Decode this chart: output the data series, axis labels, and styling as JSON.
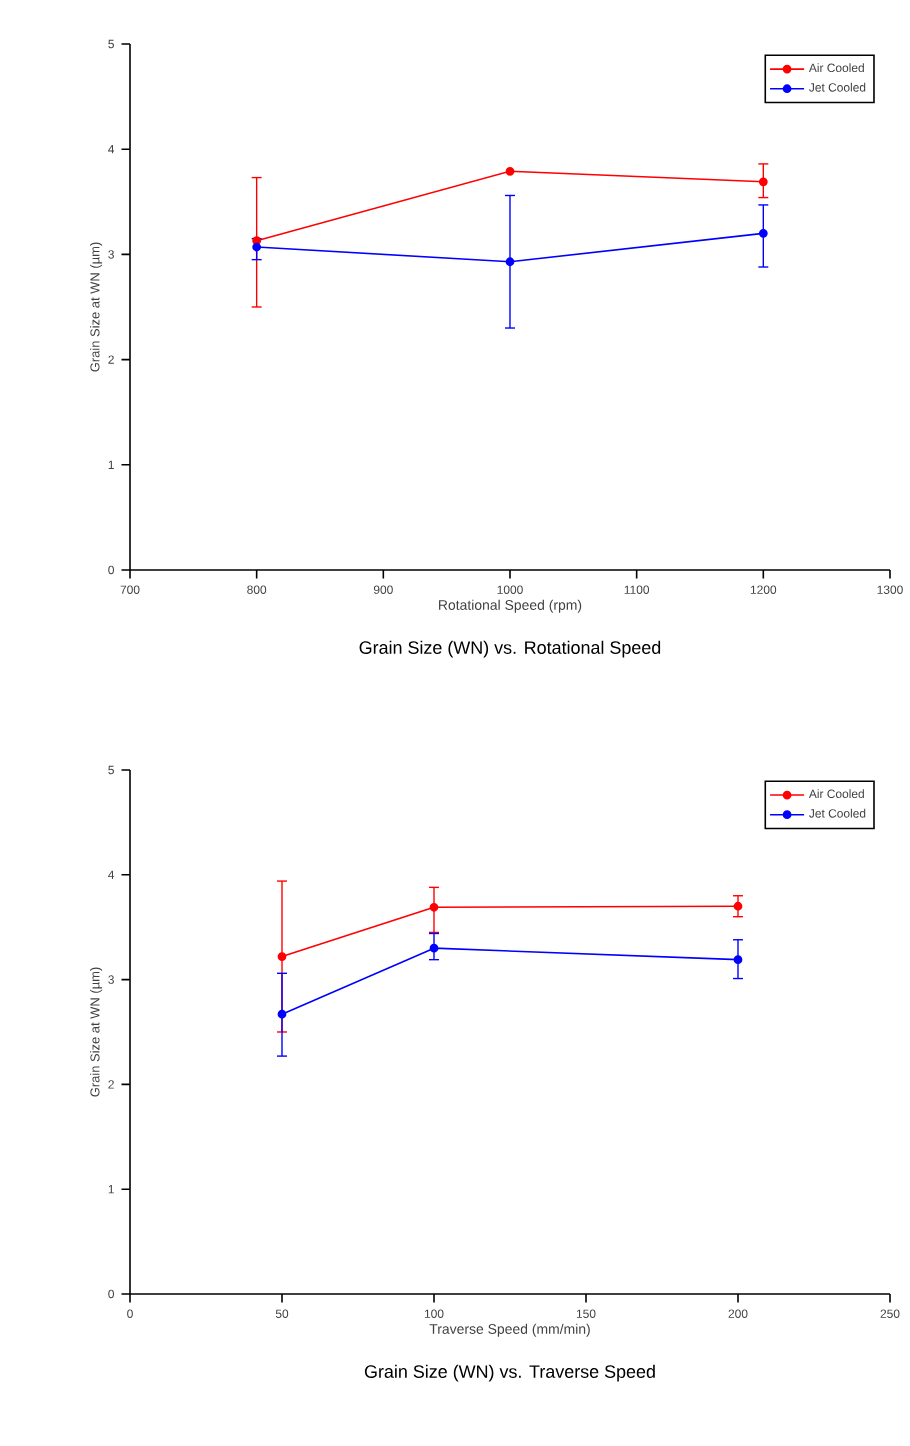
{
  "chart_data": [
    {
      "type": "line",
      "title": "Grain Size (WN) vs. Rotational Speed",
      "xlabel": "Rotational Speed (rpm)",
      "ylabel": "Grain Size at WN (µm)",
      "x": [
        800,
        1000,
        1200
      ],
      "xlim": [
        700,
        1300
      ],
      "xticks": [
        700,
        800,
        900,
        1000,
        1100,
        1200,
        1300
      ],
      "ylim": [
        0,
        5
      ],
      "yticks": [
        0,
        1,
        2,
        3,
        4,
        5
      ],
      "legend": "top right",
      "marker": "circle",
      "series": [
        {
          "name": "Air Cooled",
          "color": "#ff0000",
          "values": [
            3.13,
            3.79,
            3.69
          ],
          "errors": [
            [
              2.5,
              3.73
            ],
            null,
            [
              3.54,
              3.86
            ]
          ]
        },
        {
          "name": "Jet Cooled",
          "color": "#0000ff",
          "values": [
            3.07,
            2.93,
            3.2
          ],
          "errors": [
            [
              2.95,
              3.15
            ],
            [
              2.3,
              3.56
            ],
            [
              2.88,
              3.47
            ]
          ]
        }
      ]
    },
    {
      "type": "line",
      "title": "Grain Size (WN) vs. Traverse Speed",
      "xlabel": "Traverse Speed (mm/min)",
      "ylabel": "Grain Size at WN (µm)",
      "x": [
        50,
        100,
        200
      ],
      "xlim": [
        0,
        250
      ],
      "xticks": [
        0,
        50,
        100,
        150,
        200,
        250
      ],
      "ylim": [
        0,
        5
      ],
      "yticks": [
        0,
        1,
        2,
        3,
        4,
        5
      ],
      "legend": "top right",
      "marker": "circle",
      "series": [
        {
          "name": "Air Cooled",
          "color": "#ff0000",
          "values": [
            3.22,
            3.69,
            3.7
          ],
          "errors": [
            [
              2.5,
              3.94
            ],
            [
              3.45,
              3.88
            ],
            [
              3.6,
              3.8
            ]
          ]
        },
        {
          "name": "Jet Cooled",
          "color": "#0000ff",
          "values": [
            2.67,
            3.3,
            3.19
          ],
          "errors": [
            [
              2.27,
              3.06
            ],
            [
              3.19,
              3.44
            ],
            [
              3.01,
              3.38
            ]
          ]
        }
      ]
    }
  ]
}
